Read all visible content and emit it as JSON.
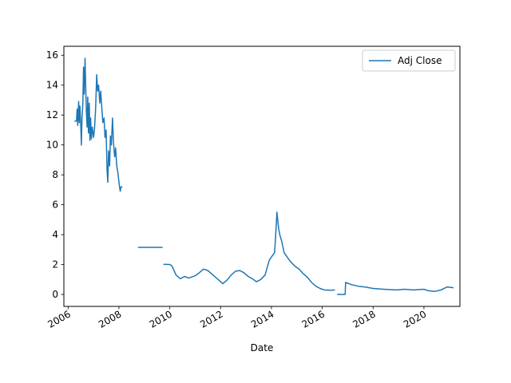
{
  "chart_data": {
    "type": "line",
    "title": "",
    "xlabel": "Date",
    "ylabel": "",
    "grid": false,
    "legend_position": "top-right",
    "xlim": [
      "2005-11-01",
      "2021-06-01"
    ],
    "ylim": [
      -0.8,
      16.6
    ],
    "x_ticks": [
      {
        "date": "2006-01-01",
        "label": "2006"
      },
      {
        "date": "2008-01-01",
        "label": "2008"
      },
      {
        "date": "2010-01-01",
        "label": "2010"
      },
      {
        "date": "2012-01-01",
        "label": "2012"
      },
      {
        "date": "2014-01-01",
        "label": "2014"
      },
      {
        "date": "2016-01-01",
        "label": "2016"
      },
      {
        "date": "2018-01-01",
        "label": "2018"
      },
      {
        "date": "2020-01-01",
        "label": "2020"
      }
    ],
    "y_ticks": [
      0,
      2,
      4,
      6,
      8,
      10,
      12,
      14,
      16
    ],
    "series": [
      {
        "name": "Adj Close",
        "color": "#1f77b4",
        "segments": [
          [
            [
              "2006-04-01",
              11.6
            ],
            [
              "2006-05-01",
              11.6
            ],
            [
              "2006-05-10",
              12.4
            ],
            [
              "2006-05-20",
              11.3
            ],
            [
              "2006-06-01",
              12.9
            ],
            [
              "2006-06-10",
              11.5
            ],
            [
              "2006-06-20",
              12.6
            ],
            [
              "2006-07-01",
              11.4
            ],
            [
              "2006-07-10",
              10.0
            ],
            [
              "2006-07-20",
              11.8
            ],
            [
              "2006-08-01",
              12.8
            ],
            [
              "2006-08-10",
              15.2
            ],
            [
              "2006-08-20",
              13.4
            ],
            [
              "2006-09-01",
              15.8
            ],
            [
              "2006-09-10",
              14.0
            ],
            [
              "2006-09-20",
              12.2
            ],
            [
              "2006-10-01",
              11.2
            ],
            [
              "2006-10-10",
              13.2
            ],
            [
              "2006-10-20",
              10.8
            ],
            [
              "2006-11-01",
              12.8
            ],
            [
              "2006-11-10",
              10.3
            ],
            [
              "2006-11-20",
              11.8
            ],
            [
              "2006-12-01",
              10.4
            ],
            [
              "2006-12-15",
              11.2
            ],
            [
              "2007-01-01",
              10.5
            ],
            [
              "2007-01-15",
              11.0
            ],
            [
              "2007-02-01",
              12.5
            ],
            [
              "2007-02-15",
              14.7
            ],
            [
              "2007-03-01",
              13.6
            ],
            [
              "2007-03-15",
              14.0
            ],
            [
              "2007-04-01",
              12.8
            ],
            [
              "2007-04-15",
              13.6
            ],
            [
              "2007-05-01",
              12.4
            ],
            [
              "2007-05-15",
              11.5
            ],
            [
              "2007-06-01",
              11.8
            ],
            [
              "2007-06-15",
              10.5
            ],
            [
              "2007-07-01",
              11.0
            ],
            [
              "2007-07-15",
              8.3
            ],
            [
              "2007-07-25",
              7.5
            ],
            [
              "2007-08-05",
              9.6
            ],
            [
              "2007-08-20",
              8.6
            ],
            [
              "2007-09-01",
              10.6
            ],
            [
              "2007-09-15",
              10.0
            ],
            [
              "2007-10-01",
              11.8
            ],
            [
              "2007-10-15",
              10.2
            ],
            [
              "2007-11-01",
              9.2
            ],
            [
              "2007-11-15",
              9.8
            ],
            [
              "2007-12-01",
              8.6
            ],
            [
              "2007-12-15",
              8.2
            ],
            [
              "2008-01-10",
              7.2
            ],
            [
              "2008-01-20",
              6.9
            ],
            [
              "2008-02-01",
              7.2
            ],
            [
              "2008-02-20",
              7.2
            ]
          ],
          [
            [
              "2008-10-01",
              3.15
            ],
            [
              "2009-09-20",
              3.15
            ]
          ],
          [
            [
              "2009-10-01",
              2.02
            ],
            [
              "2010-01-01",
              2.0
            ],
            [
              "2010-02-01",
              1.9
            ],
            [
              "2010-04-01",
              1.3
            ],
            [
              "2010-06-01",
              1.05
            ],
            [
              "2010-08-01",
              1.2
            ],
            [
              "2010-10-01",
              1.1
            ],
            [
              "2011-01-01",
              1.25
            ],
            [
              "2011-03-01",
              1.45
            ],
            [
              "2011-05-01",
              1.7
            ],
            [
              "2011-07-01",
              1.6
            ],
            [
              "2011-09-01",
              1.35
            ],
            [
              "2011-11-01",
              1.1
            ],
            [
              "2012-01-01",
              0.85
            ],
            [
              "2012-02-01",
              0.72
            ],
            [
              "2012-04-01",
              0.95
            ],
            [
              "2012-06-01",
              1.3
            ],
            [
              "2012-08-01",
              1.55
            ],
            [
              "2012-10-01",
              1.6
            ],
            [
              "2012-12-01",
              1.45
            ],
            [
              "2013-02-01",
              1.2
            ],
            [
              "2013-04-01",
              1.05
            ],
            [
              "2013-06-01",
              0.85
            ],
            [
              "2013-08-01",
              1.0
            ],
            [
              "2013-10-01",
              1.3
            ],
            [
              "2013-12-01",
              2.3
            ],
            [
              "2014-01-15",
              2.6
            ],
            [
              "2014-02-15",
              2.8
            ],
            [
              "2014-03-01",
              3.8
            ],
            [
              "2014-03-20",
              5.5
            ],
            [
              "2014-04-01",
              5.0
            ],
            [
              "2014-04-15",
              4.4
            ],
            [
              "2014-05-01",
              4.0
            ],
            [
              "2014-06-01",
              3.5
            ],
            [
              "2014-07-01",
              2.8
            ],
            [
              "2014-08-15",
              2.5
            ],
            [
              "2014-10-01",
              2.2
            ],
            [
              "2014-12-01",
              1.9
            ],
            [
              "2015-02-01",
              1.7
            ],
            [
              "2015-04-01",
              1.4
            ],
            [
              "2015-06-01",
              1.15
            ],
            [
              "2015-08-01",
              0.8
            ],
            [
              "2015-10-01",
              0.55
            ],
            [
              "2015-12-01",
              0.4
            ],
            [
              "2016-02-01",
              0.3
            ],
            [
              "2016-05-01",
              0.28
            ],
            [
              "2016-07-01",
              0.3
            ]
          ],
          [
            [
              "2016-08-01",
              0.0
            ],
            [
              "2016-11-25",
              0.0
            ],
            [
              "2016-12-01",
              0.8
            ],
            [
              "2017-03-01",
              0.65
            ],
            [
              "2017-06-01",
              0.55
            ],
            [
              "2017-09-01",
              0.5
            ],
            [
              "2018-01-01",
              0.4
            ],
            [
              "2018-06-01",
              0.35
            ],
            [
              "2018-12-01",
              0.3
            ],
            [
              "2019-04-01",
              0.35
            ],
            [
              "2019-08-01",
              0.3
            ],
            [
              "2020-01-01",
              0.35
            ],
            [
              "2020-03-01",
              0.25
            ],
            [
              "2020-06-01",
              0.2
            ],
            [
              "2020-09-01",
              0.3
            ],
            [
              "2020-12-01",
              0.5
            ],
            [
              "2021-03-01",
              0.45
            ]
          ]
        ]
      }
    ]
  }
}
